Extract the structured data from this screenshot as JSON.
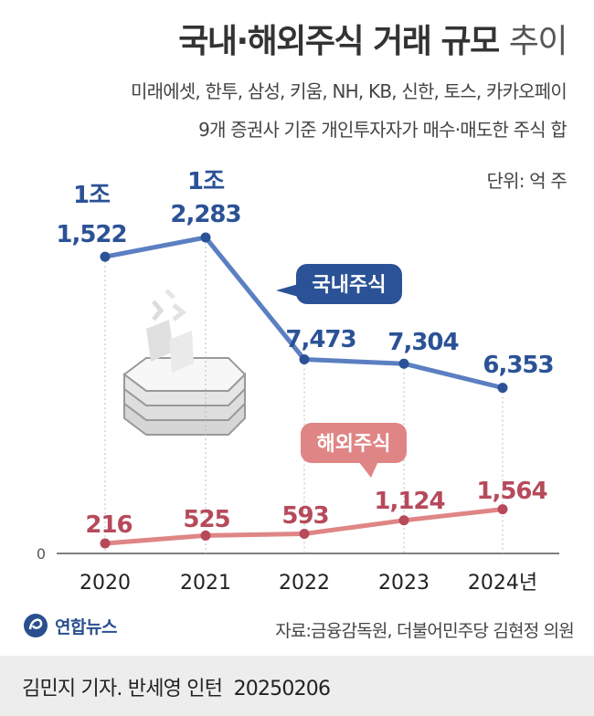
{
  "title": {
    "main": "국내·해외주식 거래 규모",
    "light": "추이"
  },
  "subtitle_line1": "미래에셋, 한투, 삼성, 키움, NH, KB, 신한, 토스, 카카오페이",
  "subtitle_line2": "9개 증권사 기준 개인투자자가 매수·매도한 주식 합",
  "unit": "단위: 억 주",
  "source": "자료:금융감독원, 더불어민주당 김현정 의원",
  "agency": "연합뉴스",
  "credit": "김민지 기자. 반세영 인턴",
  "date": "20250206",
  "colors": {
    "domestic": "#5b7fc1",
    "domestic_label": "#2b5296",
    "overseas": "#e08585",
    "overseas_label": "#b64a5b"
  },
  "chart_data": {
    "type": "line",
    "categories": [
      "2020",
      "2021",
      "2022",
      "2023",
      "2024년"
    ],
    "ylim": [
      0,
      23000
    ],
    "yticks": [
      "0"
    ],
    "series": [
      {
        "name": "국내주식",
        "values": [
          11522,
          12283,
          7473,
          7304,
          6353
        ],
        "labels_top": [
          "1조",
          "1조",
          "",
          "",
          ""
        ],
        "labels": [
          "1,522",
          "2,283",
          "7,473",
          "7,304",
          "6,353"
        ]
      },
      {
        "name": "해외주식",
        "values": [
          216,
          525,
          593,
          1124,
          1564
        ],
        "labels_top": [
          "",
          "",
          "",
          "",
          ""
        ],
        "labels": [
          "216",
          "525",
          "593",
          "1,124",
          "1,564"
        ]
      }
    ]
  }
}
